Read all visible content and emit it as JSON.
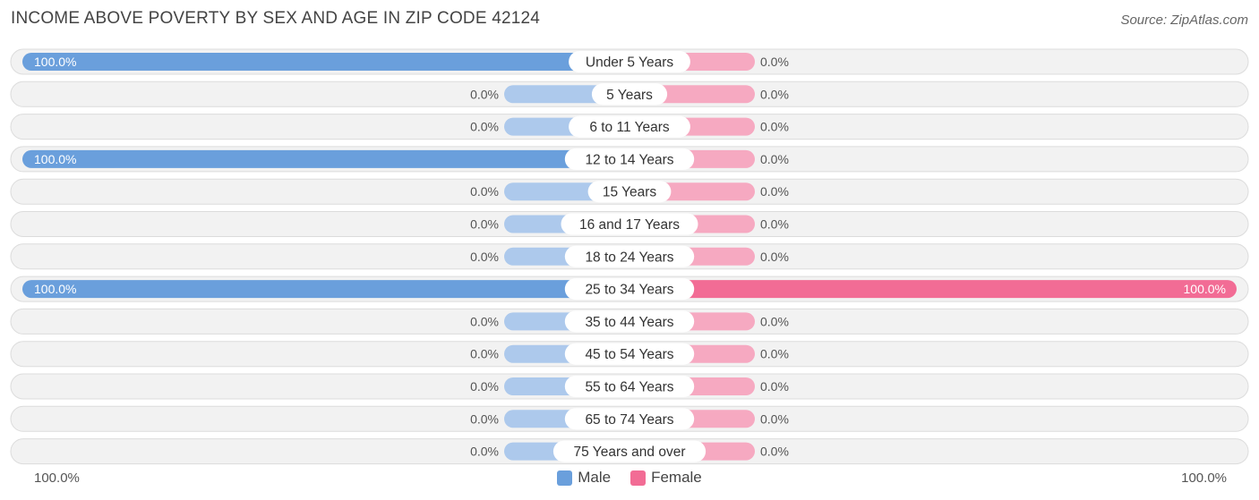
{
  "header": {
    "title": "INCOME ABOVE POVERTY BY SEX AND AGE IN ZIP CODE 42124",
    "source": "Source: ZipAtlas.com"
  },
  "colors": {
    "male_full": "#6a9fdc",
    "male_empty": "#adc9ec",
    "female_full": "#f26c95",
    "female_empty": "#f6a9c1",
    "row_bg": "#f2f2f2",
    "row_border": "#dcdcdc"
  },
  "axis": {
    "left_label": "100.0%",
    "right_label": "100.0%"
  },
  "legend": {
    "male_label": "Male",
    "female_label": "Female"
  },
  "chart_data": {
    "type": "bar",
    "orientation": "horizontal-diverging",
    "title": "INCOME ABOVE POVERTY BY SEX AND AGE IN ZIP CODE 42124",
    "xlim": [
      0,
      100
    ],
    "categories": [
      "Under 5 Years",
      "5 Years",
      "6 to 11 Years",
      "12 to 14 Years",
      "15 Years",
      "16 and 17 Years",
      "18 to 24 Years",
      "25 to 34 Years",
      "35 to 44 Years",
      "45 to 54 Years",
      "55 to 64 Years",
      "65 to 74 Years",
      "75 Years and over"
    ],
    "series": [
      {
        "name": "Male",
        "values": [
          100,
          0,
          0,
          100,
          0,
          0,
          0,
          100,
          0,
          0,
          0,
          0,
          0
        ],
        "labels": [
          "100.0%",
          "0.0%",
          "0.0%",
          "100.0%",
          "0.0%",
          "0.0%",
          "0.0%",
          "100.0%",
          "0.0%",
          "0.0%",
          "0.0%",
          "0.0%",
          "0.0%"
        ]
      },
      {
        "name": "Female",
        "values": [
          0,
          0,
          0,
          0,
          0,
          0,
          0,
          100,
          0,
          0,
          0,
          0,
          0
        ],
        "labels": [
          "0.0%",
          "0.0%",
          "0.0%",
          "0.0%",
          "0.0%",
          "0.0%",
          "0.0%",
          "100.0%",
          "0.0%",
          "0.0%",
          "0.0%",
          "0.0%",
          "0.0%"
        ]
      }
    ]
  }
}
